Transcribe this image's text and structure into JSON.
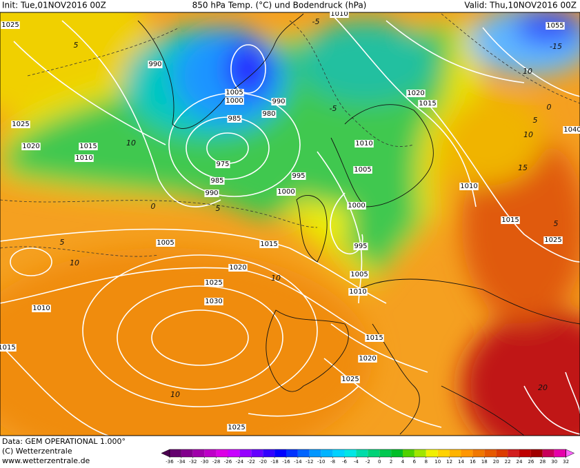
{
  "header": {
    "init": "Init: Tue,01NOV2016 00Z",
    "title": "850 hPa Temp. (°C) und Bodendruck (hPa)",
    "valid": "Valid: Thu,10NOV2016 00Z"
  },
  "isobar_labels": [
    1010,
    1025,
    990,
    1005,
    1000,
    990,
    985,
    980,
    1025,
    1020,
    1015,
    1010,
    975,
    985,
    990,
    995,
    1000,
    1010,
    1005,
    1000,
    1010,
    1015,
    1025,
    1020,
    1015,
    1055,
    1040,
    1005,
    1015,
    995,
    1020,
    1005,
    1025,
    1010,
    1030,
    1010,
    1015,
    1015,
    1020,
    1025,
    1025
  ],
  "temperature_labels": [
    -5,
    -15,
    5,
    10,
    -5,
    10,
    0,
    5,
    5,
    10,
    10,
    10,
    5,
    10,
    15,
    5,
    20,
    0
  ],
  "footer": {
    "data": "Data: GEM OPERATIONAL 1.000°",
    "copyright": "(C) Wetterzentrale",
    "url": "www.wetterzentrale.de"
  },
  "colorbar": {
    "ticks": [
      -36,
      -34,
      -32,
      -30,
      -28,
      -26,
      -24,
      -22,
      -20,
      -18,
      -16,
      -14,
      -12,
      -10,
      -8,
      -6,
      -4,
      -2,
      0,
      2,
      4,
      6,
      8,
      10,
      12,
      14,
      16,
      18,
      20,
      22,
      24,
      26,
      28,
      30,
      32
    ],
    "colors": [
      "#4b0050",
      "#64006e",
      "#82008c",
      "#a000aa",
      "#be00c8",
      "#dc00e6",
      "#c800ff",
      "#9600ff",
      "#6400ff",
      "#3200ff",
      "#0000ff",
      "#0032ff",
      "#0064ff",
      "#0096ff",
      "#00b4ff",
      "#00d2ff",
      "#00e6e6",
      "#00dcaa",
      "#00d278",
      "#00c850",
      "#00be28",
      "#50d200",
      "#a0e600",
      "#f0f000",
      "#ffd200",
      "#ffb400",
      "#ff9600",
      "#f07800",
      "#e65a00",
      "#dc3c00",
      "#d21e1e",
      "#be0000",
      "#a00000",
      "#c8005a",
      "#e600aa",
      "#ff64ff"
    ]
  }
}
